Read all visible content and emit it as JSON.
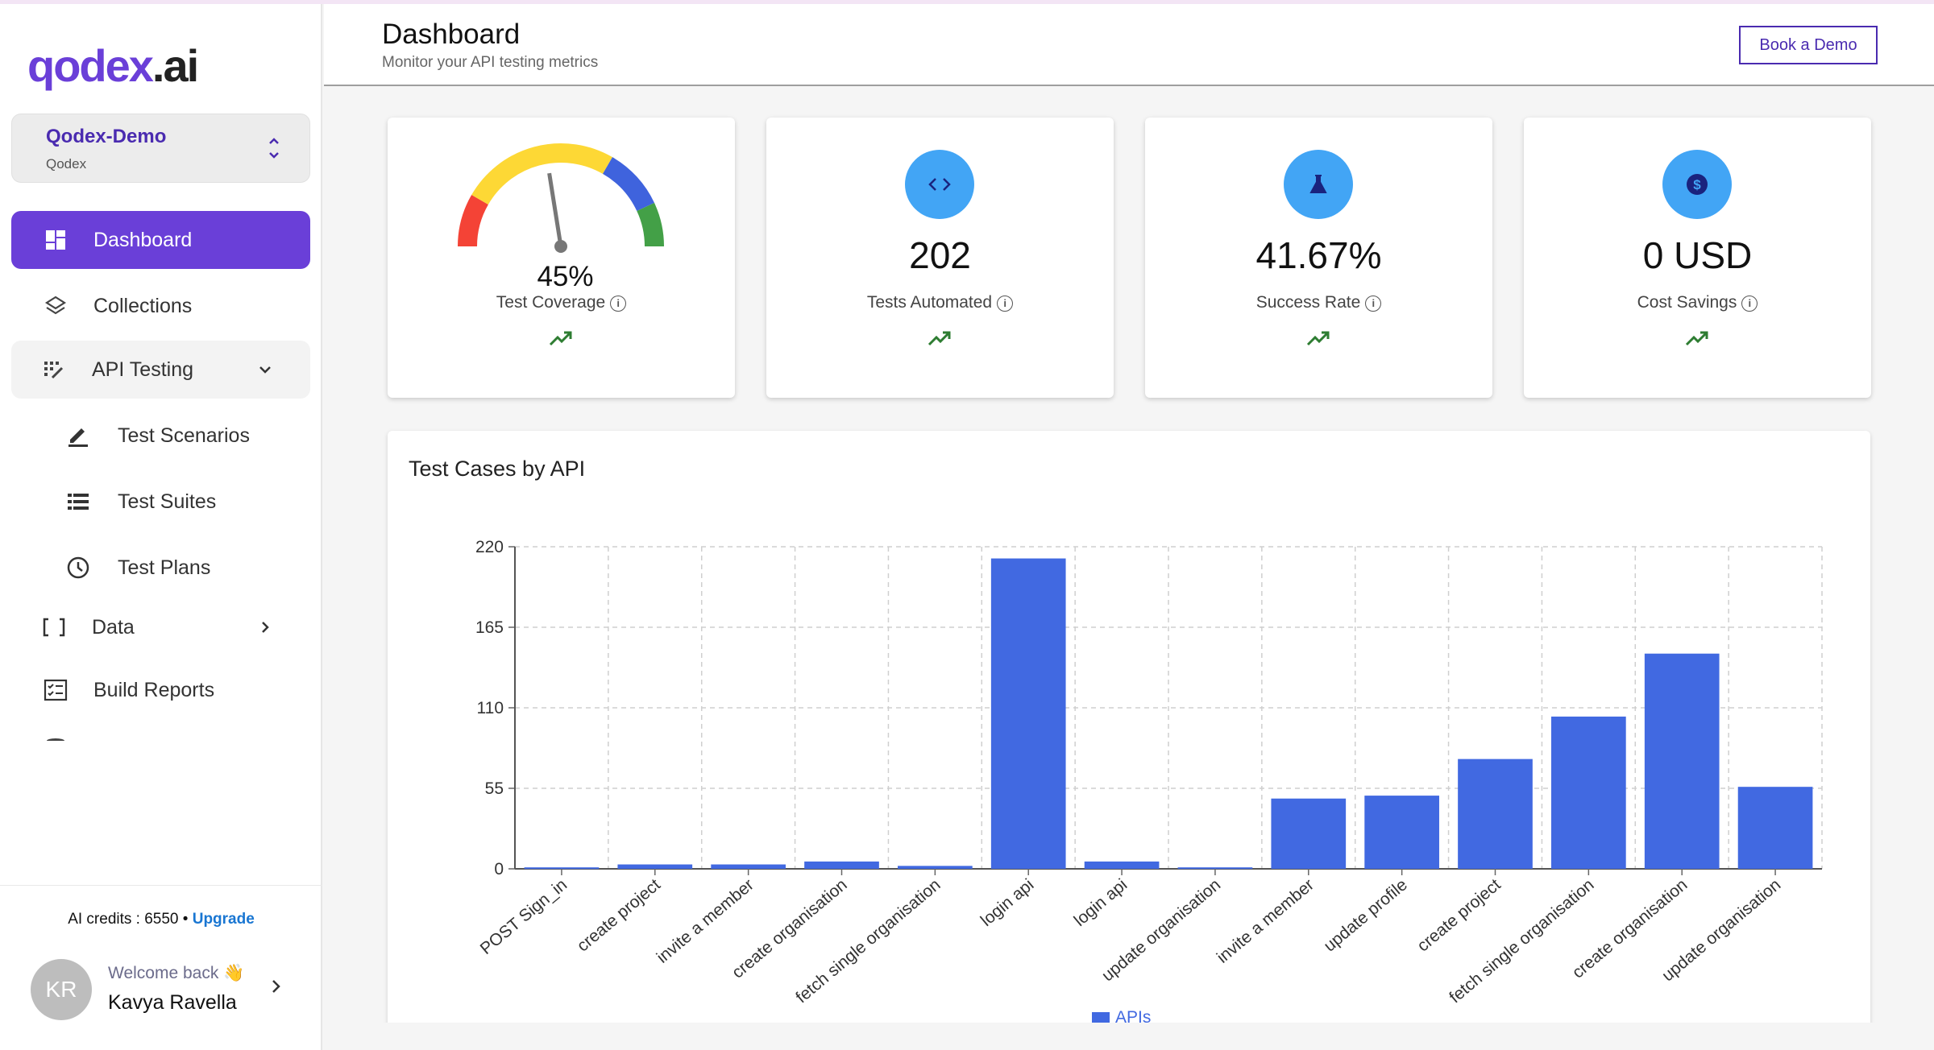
{
  "brand": {
    "logo_main": "qodex",
    "logo_dot": ".",
    "logo_ai": "ai",
    "accent": "#6a3fd8"
  },
  "workspace": {
    "name": "Qodex-Demo",
    "org": "Qodex"
  },
  "nav": {
    "dashboard": "Dashboard",
    "collections": "Collections",
    "api_testing": "API Testing",
    "test_scenarios": "Test Scenarios",
    "test_suites": "Test Suites",
    "test_plans": "Test Plans",
    "data": "Data",
    "build_reports": "Build Reports"
  },
  "credits": {
    "text": "AI credits : 6550 •",
    "upgrade": "Upgrade"
  },
  "user": {
    "initials": "KR",
    "welcome": "Welcome back 👋",
    "name": "Kavya Ravella"
  },
  "header": {
    "title": "Dashboard",
    "subtitle": "Monitor your API testing metrics",
    "demo_button": "Book a Demo"
  },
  "cards": {
    "coverage": {
      "value": "45%",
      "label": "Test Coverage",
      "fraction": 0.45
    },
    "automated": {
      "value": "202",
      "label": "Tests Automated",
      "icon": "code-icon"
    },
    "success": {
      "value": "41.67%",
      "label": "Success Rate",
      "icon": "flask-icon"
    },
    "savings": {
      "value": "0 USD",
      "label": "Cost Savings",
      "icon": "dollar-icon"
    }
  },
  "chart_data": {
    "type": "bar",
    "title": "Test Cases by API",
    "categories": [
      "POST Sign_in",
      "create project",
      "invite a member",
      "create organisation",
      "fetch single organisation",
      "login api",
      "login api",
      "update organisation",
      "invite a member",
      "update profile",
      "create project",
      "fetch single organisation",
      "create organisation",
      "update organisation"
    ],
    "series": [
      {
        "name": "APIs",
        "color": "#4169e1",
        "values": [
          1,
          3,
          3,
          5,
          2,
          212,
          5,
          1,
          48,
          50,
          75,
          104,
          147,
          56
        ]
      }
    ],
    "yticks": [
      "0",
      "55",
      "110",
      "165",
      "220"
    ],
    "ylim": [
      0,
      220
    ],
    "grid": true,
    "legend": "bottom"
  }
}
